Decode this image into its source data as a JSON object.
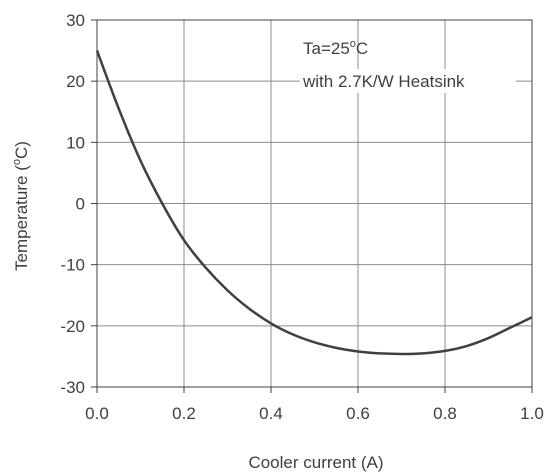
{
  "chart_data": {
    "type": "line",
    "xlabel": "Cooler current  (A)",
    "ylabel_main": "Temperature  (",
    "ylabel_sup": "o",
    "ylabel_end": "C)",
    "xlim": [
      0.0,
      1.0
    ],
    "ylim": [
      -30,
      30
    ],
    "x_ticks": [
      0.0,
      0.2,
      0.4,
      0.6,
      0.8,
      1.0
    ],
    "x_tick_labels": [
      "0.0",
      "0.2",
      "0.4",
      "0.6",
      "0.8",
      "1.0"
    ],
    "y_ticks": [
      30,
      20,
      10,
      0,
      -10,
      -20,
      -30
    ],
    "y_tick_labels": [
      "30",
      "20",
      "10",
      "0",
      "-10",
      "-20",
      "-30"
    ],
    "grid": true,
    "line_color": "#404040",
    "annotation": {
      "line1_pre": "Ta=25",
      "line1_sup": "o",
      "line1_post": "C",
      "line2": "with 2.7K/W Heatsink"
    },
    "series": [
      {
        "x": [
          0.0,
          0.05,
          0.1,
          0.15,
          0.2,
          0.25,
          0.3,
          0.35,
          0.4,
          0.45,
          0.5,
          0.55,
          0.6,
          0.65,
          0.7,
          0.75,
          0.8,
          0.85,
          0.9,
          0.95,
          1.0
        ],
        "y": [
          25,
          15.5,
          7.0,
          0.0,
          -6.0,
          -10.5,
          -14.2,
          -17.2,
          -19.6,
          -21.4,
          -22.7,
          -23.6,
          -24.2,
          -24.5,
          -24.6,
          -24.5,
          -24.1,
          -23.3,
          -22.0,
          -20.3,
          -18.6
        ]
      }
    ]
  }
}
